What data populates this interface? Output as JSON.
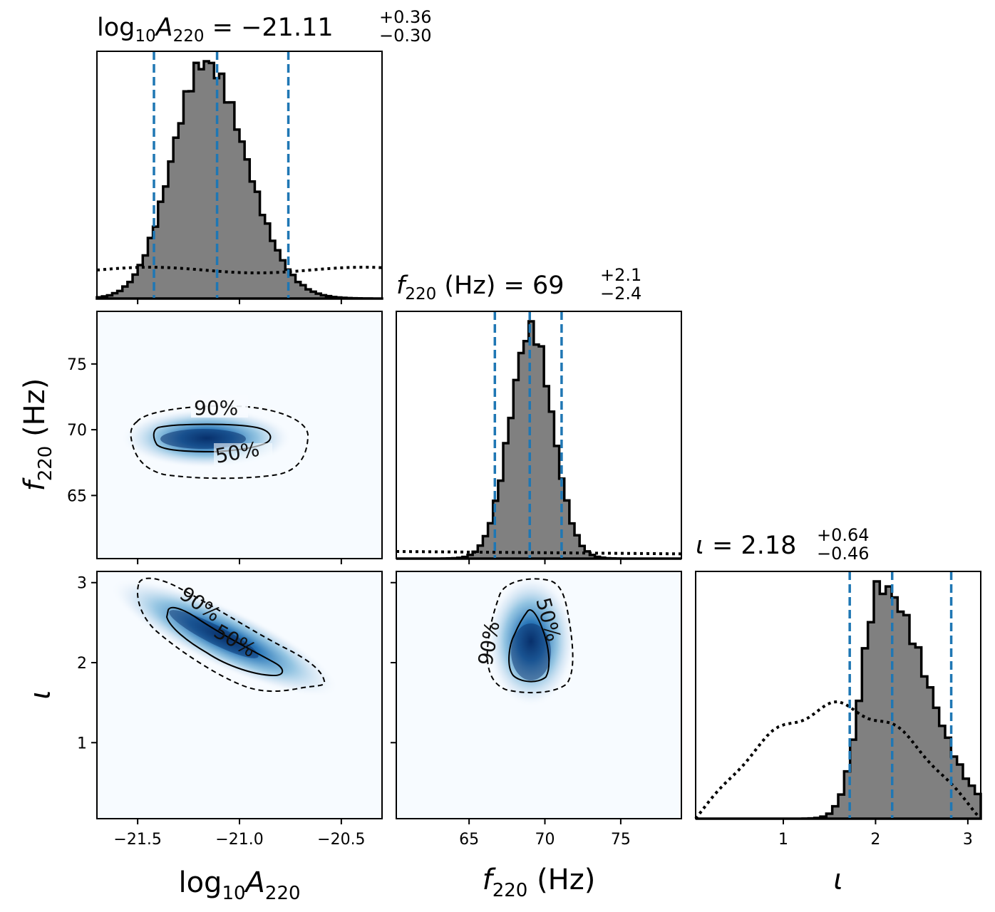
{
  "chart_data": {
    "type": "corner",
    "parameters": [
      {
        "key": "logA",
        "axis_label": {
          "base": "log",
          "sub1": "10",
          "sym": "A",
          "sub2": "220",
          "unit": ""
        },
        "title": {
          "value": "−21.11",
          "plus": "+0.36",
          "minus": "−0.30"
        },
        "range": [
          -21.7,
          -20.3
        ],
        "ticks": [
          -21.5,
          -21.0,
          -20.5
        ],
        "tick_labels": [
          "−21.5",
          "−21.0",
          "−20.5"
        ],
        "quantiles": [
          -21.42,
          -21.11,
          -20.76
        ],
        "posterior_peak": 1.0,
        "prior_level": 0.12
      },
      {
        "key": "f220",
        "axis_label": {
          "sym": "f",
          "sub": "220",
          "unit": "(Hz)"
        },
        "title": {
          "value": "69",
          "plus": "+2.1",
          "minus": "−2.4"
        },
        "range": [
          60.2,
          79
        ],
        "ticks": [
          65,
          70,
          75
        ],
        "tick_labels": [
          "65",
          "70",
          "75"
        ],
        "ytick_labels": [
          "65",
          "70",
          "75"
        ],
        "quantiles": [
          66.7,
          69.0,
          71.1
        ],
        "prior_level": 0.03
      },
      {
        "key": "iota",
        "axis_label": {
          "sym": "ι",
          "unit": ""
        },
        "title": {
          "value": "2.18",
          "plus": "+0.64",
          "minus": "−0.46"
        },
        "range": [
          0.05,
          3.14
        ],
        "ticks": [
          1,
          2,
          3
        ],
        "tick_labels": [
          "1",
          "2",
          "3"
        ],
        "ytick_labels": [
          "1",
          "2",
          "3"
        ],
        "quantiles": [
          1.72,
          2.18,
          2.82
        ]
      }
    ],
    "contour_labels": {
      "outer": "90%",
      "inner": "50%"
    },
    "title_separator": " = ",
    "colors": {
      "histogram_fill": "#808080",
      "histogram_edge": "#000000",
      "quantile_line": "#1f77b4",
      "density_cmap": [
        "#f7fbff",
        "#c6dbef",
        "#6baed6",
        "#2171b5",
        "#08306b"
      ]
    }
  }
}
